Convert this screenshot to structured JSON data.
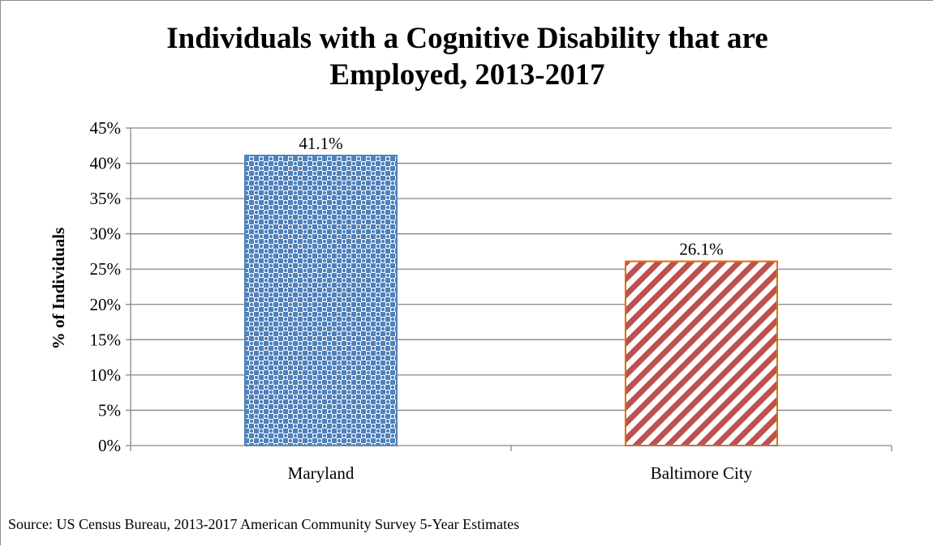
{
  "source_note": "Source: US Census Bureau, 2013-2017 American Community Survey 5-Year Estimates",
  "chart_data": {
    "type": "bar",
    "title": "Individuals with a Cognitive Disability that are Employed, 2013-2017",
    "title_lines": [
      "Individuals with a Cognitive Disability that are",
      "Employed, 2013-2017"
    ],
    "xlabel": "",
    "ylabel": "% of Individuals",
    "categories": [
      "Maryland",
      "Baltimore City"
    ],
    "values": [
      41.1,
      26.1
    ],
    "data_labels": [
      "41.1%",
      "26.1%"
    ],
    "ylim": [
      0,
      45
    ],
    "yticks": [
      0,
      5,
      10,
      15,
      20,
      25,
      30,
      35,
      40,
      45
    ],
    "ytick_labels": [
      "0%",
      "5%",
      "10%",
      "15%",
      "20%",
      "25%",
      "30%",
      "35%",
      "40%",
      "45%"
    ],
    "grid": true,
    "legend": "none",
    "bar_styles": [
      {
        "pattern": "checker",
        "stroke": "#4f81bd",
        "fill": "#4f81bd",
        "background": "#ffffff"
      },
      {
        "pattern": "diagonal-stripes",
        "stroke": "#e36c09",
        "fill": "#c0504d",
        "background": "#ffffff"
      }
    ],
    "gridline_color": "#868686",
    "axis_color": "#868686"
  }
}
